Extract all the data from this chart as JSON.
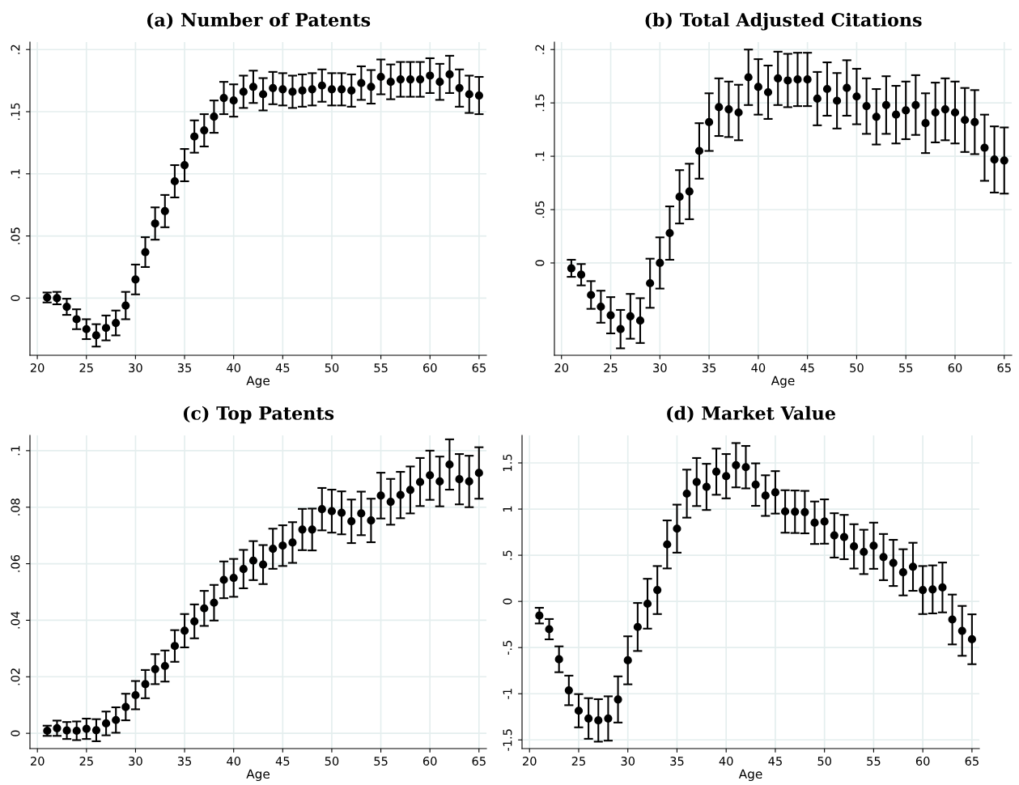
{
  "chart_data": [
    {
      "type": "scatter",
      "title": "(a) Number of Patents",
      "xlabel": "Age",
      "marker": "circle",
      "grid": true,
      "color": "#000000",
      "x": [
        21,
        22,
        23,
        24,
        25,
        26,
        27,
        28,
        29,
        30,
        31,
        32,
        33,
        34,
        35,
        36,
        37,
        38,
        39,
        40,
        41,
        42,
        43,
        44,
        45,
        46,
        47,
        48,
        49,
        50,
        51,
        52,
        53,
        54,
        55,
        56,
        57,
        58,
        59,
        60,
        61,
        62,
        63,
        64,
        65
      ],
      "values": [
        0.0005,
        0.0,
        -0.007,
        -0.017,
        -0.025,
        -0.03,
        -0.024,
        -0.02,
        -0.006,
        0.015,
        0.037,
        0.06,
        0.07,
        0.094,
        0.107,
        0.13,
        0.135,
        0.146,
        0.161,
        0.159,
        0.166,
        0.17,
        0.164,
        0.169,
        0.168,
        0.166,
        0.167,
        0.168,
        0.171,
        0.168,
        0.168,
        0.167,
        0.173,
        0.17,
        0.178,
        0.174,
        0.176,
        0.176,
        0.176,
        0.179,
        0.174,
        0.18,
        0.169,
        0.164,
        0.163
      ],
      "errors": [
        0.004,
        0.005,
        0.0065,
        0.008,
        0.008,
        0.009,
        0.01,
        0.01,
        0.011,
        0.012,
        0.012,
        0.013,
        0.013,
        0.013,
        0.013,
        0.013,
        0.013,
        0.013,
        0.013,
        0.013,
        0.013,
        0.013,
        0.013,
        0.013,
        0.013,
        0.013,
        0.013,
        0.013,
        0.013,
        0.013,
        0.013,
        0.013,
        0.0135,
        0.0135,
        0.014,
        0.014,
        0.014,
        0.014,
        0.014,
        0.014,
        0.0145,
        0.015,
        0.015,
        0.015,
        0.015
      ],
      "xlim": [
        19.25,
        65.75
      ],
      "xticks": [
        20,
        25,
        30,
        35,
        40,
        45,
        50,
        55,
        60,
        65
      ],
      "ylim": [
        -0.046,
        0.206
      ],
      "yticks": [
        0,
        {
          "value": 0.05,
          "label": ".05"
        },
        {
          "value": 0.1,
          "label": ".1"
        },
        {
          "value": 0.15,
          "label": ".15"
        },
        {
          "value": 0.2,
          "label": ".2"
        }
      ]
    },
    {
      "type": "scatter",
      "title": "(b) Total Adjusted Citations",
      "xlabel": "Age",
      "marker": "circle",
      "grid": true,
      "color": "#000000",
      "x": [
        21,
        22,
        23,
        24,
        25,
        26,
        27,
        28,
        29,
        30,
        31,
        32,
        33,
        34,
        35,
        36,
        37,
        38,
        39,
        40,
        41,
        42,
        43,
        44,
        45,
        46,
        47,
        48,
        49,
        50,
        51,
        52,
        53,
        54,
        55,
        56,
        57,
        58,
        59,
        60,
        61,
        62,
        63,
        64,
        65
      ],
      "values": [
        -0.005,
        -0.011,
        -0.03,
        -0.041,
        -0.049,
        -0.062,
        -0.05,
        -0.054,
        -0.019,
        0.0,
        0.028,
        0.062,
        0.067,
        0.105,
        0.132,
        0.146,
        0.144,
        0.141,
        0.174,
        0.165,
        0.16,
        0.173,
        0.171,
        0.172,
        0.172,
        0.154,
        0.163,
        0.152,
        0.164,
        0.156,
        0.147,
        0.137,
        0.148,
        0.139,
        0.143,
        0.148,
        0.131,
        0.141,
        0.144,
        0.141,
        0.134,
        0.132,
        0.108,
        0.097,
        0.096
      ],
      "errors": [
        0.008,
        0.01,
        0.013,
        0.015,
        0.017,
        0.018,
        0.021,
        0.021,
        0.023,
        0.024,
        0.025,
        0.025,
        0.026,
        0.026,
        0.027,
        0.027,
        0.026,
        0.026,
        0.026,
        0.026,
        0.025,
        0.025,
        0.025,
        0.025,
        0.025,
        0.025,
        0.025,
        0.026,
        0.026,
        0.026,
        0.026,
        0.026,
        0.027,
        0.027,
        0.027,
        0.028,
        0.028,
        0.028,
        0.029,
        0.029,
        0.03,
        0.03,
        0.031,
        0.031,
        0.031
      ],
      "xlim": [
        19.28,
        65.76
      ],
      "xticks": [
        20,
        25,
        30,
        35,
        40,
        45,
        50,
        55,
        60,
        65
      ],
      "ylim": [
        -0.0865,
        0.207
      ],
      "yticks": [
        0,
        {
          "value": 0.05,
          "label": ".05"
        },
        {
          "value": 0.1,
          "label": ".1"
        },
        {
          "value": 0.15,
          "label": ".15"
        },
        {
          "value": 0.2,
          "label": ".2"
        }
      ]
    },
    {
      "type": "scatter",
      "title": "(c) Top Patents",
      "xlabel": "Age",
      "marker": "circle",
      "grid": true,
      "color": "#000000",
      "x": [
        21,
        22,
        23,
        24,
        25,
        26,
        27,
        28,
        29,
        30,
        31,
        32,
        33,
        34,
        35,
        36,
        37,
        38,
        39,
        40,
        41,
        42,
        43,
        44,
        45,
        46,
        47,
        48,
        49,
        50,
        51,
        52,
        53,
        54,
        55,
        56,
        57,
        58,
        59,
        60,
        61,
        62,
        63,
        64,
        65
      ],
      "values": [
        0.0009,
        0.0018,
        0.001,
        0.0009,
        0.0016,
        0.0011,
        0.0035,
        0.0047,
        0.0093,
        0.0135,
        0.0174,
        0.0227,
        0.0238,
        0.0309,
        0.0363,
        0.0396,
        0.0442,
        0.0462,
        0.0543,
        0.055,
        0.0581,
        0.0611,
        0.0597,
        0.0653,
        0.0664,
        0.0675,
        0.0721,
        0.0721,
        0.0793,
        0.0786,
        0.078,
        0.075,
        0.0778,
        0.0753,
        0.0841,
        0.0819,
        0.0843,
        0.0861,
        0.0889,
        0.0913,
        0.0891,
        0.0951,
        0.0899,
        0.0891,
        0.0921
      ],
      "errors": [
        0.0018,
        0.0027,
        0.003,
        0.0033,
        0.0036,
        0.0039,
        0.0042,
        0.0045,
        0.0047,
        0.005,
        0.005,
        0.0053,
        0.0055,
        0.0056,
        0.0059,
        0.006,
        0.0062,
        0.0063,
        0.0065,
        0.0067,
        0.0068,
        0.0069,
        0.0069,
        0.0071,
        0.0072,
        0.0072,
        0.0073,
        0.0074,
        0.0075,
        0.0076,
        0.0076,
        0.0077,
        0.0077,
        0.0077,
        0.0081,
        0.0081,
        0.0082,
        0.0083,
        0.0085,
        0.0087,
        0.0088,
        0.0089,
        0.0089,
        0.0091,
        0.0091
      ],
      "xlim": [
        19.24,
        65.76
      ],
      "xticks": [
        20,
        25,
        30,
        35,
        40,
        45,
        50,
        55,
        60,
        65
      ],
      "ylim": [
        -0.0054,
        0.1054
      ],
      "yticks": [
        0,
        {
          "value": 0.02,
          "label": ".02"
        },
        {
          "value": 0.04,
          "label": ".04"
        },
        {
          "value": 0.06,
          "label": ".06"
        },
        {
          "value": 0.08,
          "label": ".08"
        },
        {
          "value": 0.1,
          "label": ".1"
        }
      ]
    },
    {
      "type": "scatter",
      "title": "(d) Market Value",
      "xlabel": "Age",
      "marker": "circle",
      "grid": true,
      "color": "#000000",
      "x": [
        21,
        22,
        23,
        24,
        25,
        26,
        27,
        28,
        29,
        30,
        31,
        32,
        33,
        34,
        35,
        36,
        37,
        38,
        39,
        40,
        41,
        42,
        43,
        44,
        45,
        46,
        47,
        48,
        49,
        50,
        51,
        52,
        53,
        54,
        55,
        56,
        57,
        58,
        59,
        60,
        61,
        62,
        63,
        64,
        65
      ],
      "values": [
        -0.154,
        -0.301,
        -0.627,
        -0.964,
        -1.184,
        -1.268,
        -1.289,
        -1.268,
        -1.062,
        -0.638,
        -0.277,
        -0.025,
        0.123,
        0.617,
        0.788,
        1.167,
        1.293,
        1.24,
        1.405,
        1.356,
        1.475,
        1.454,
        1.265,
        1.146,
        1.181,
        0.974,
        0.971,
        0.967,
        0.852,
        0.865,
        0.715,
        0.697,
        0.596,
        0.536,
        0.603,
        0.48,
        0.417,
        0.315,
        0.375,
        0.123,
        0.13,
        0.151,
        -0.196,
        -0.319,
        -0.41
      ],
      "errors": [
        0.085,
        0.11,
        0.14,
        0.16,
        0.18,
        0.22,
        0.23,
        0.24,
        0.25,
        0.26,
        0.26,
        0.27,
        0.26,
        0.26,
        0.26,
        0.26,
        0.26,
        0.25,
        0.25,
        0.24,
        0.24,
        0.23,
        0.23,
        0.22,
        0.23,
        0.23,
        0.23,
        0.23,
        0.23,
        0.24,
        0.24,
        0.24,
        0.24,
        0.24,
        0.25,
        0.25,
        0.25,
        0.25,
        0.26,
        0.26,
        0.26,
        0.27,
        0.27,
        0.27,
        0.27
      ],
      "xlim": [
        19.24,
        65.75
      ],
      "xticks": [
        20,
        25,
        30,
        35,
        40,
        45,
        50,
        55,
        60,
        65
      ],
      "ylim": [
        -1.594,
        1.798
      ],
      "yticks": [
        {
          "value": -1.5,
          "label": "-1.5"
        },
        {
          "value": -1,
          "label": "-1"
        },
        {
          "value": -0.5,
          "label": "-.5"
        },
        0,
        {
          "value": 0.5,
          "label": ".5"
        },
        {
          "value": 1,
          "label": "1"
        },
        {
          "value": 1.5,
          "label": "1.5"
        }
      ]
    }
  ]
}
